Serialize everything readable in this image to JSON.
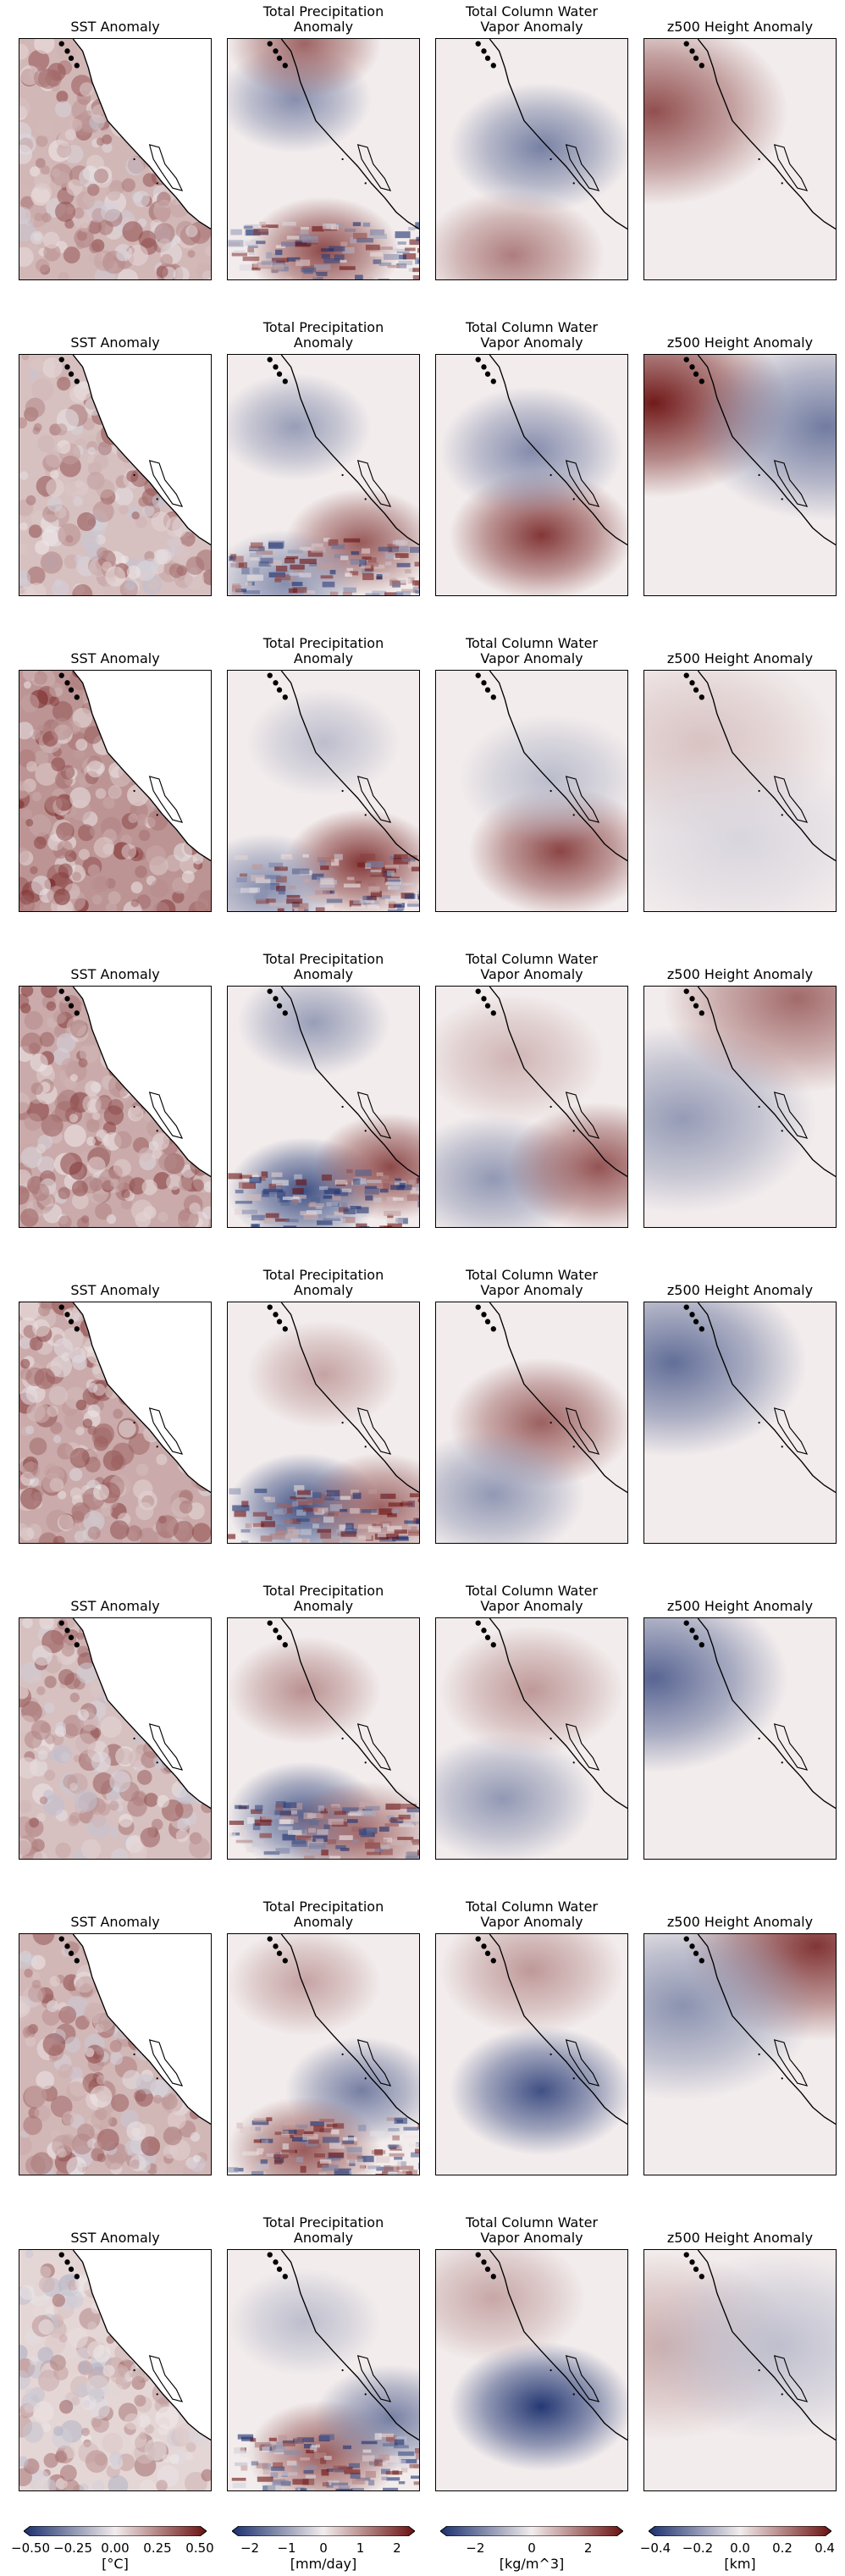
{
  "chart_data": {
    "type": "heatmap",
    "layout": {
      "rows": 8,
      "columns": 4
    },
    "panel_titles": [
      "SST Anomaly",
      "Total Precipitation\nAnomaly",
      "Total Column Water\nVapor Anomaly",
      "z500 Height Anomaly"
    ],
    "colormap": {
      "low": "#1a2f6e",
      "mid": "#f2ecec",
      "high": "#6b1010"
    },
    "colorbars": [
      {
        "ticks": [
          "−0.50",
          "−0.25",
          "0.00",
          "0.25",
          "0.50"
        ],
        "range": [
          -0.5,
          0.5
        ],
        "unit": "[°C]"
      },
      {
        "ticks": [
          "−2",
          "−1",
          "0",
          "1",
          "2"
        ],
        "range": [
          -2.3,
          2.3
        ],
        "unit": "[mm/day]"
      },
      {
        "ticks": [
          "−2",
          "0",
          "2"
        ],
        "range": [
          -3,
          3
        ],
        "unit": "[kg/m^3]"
      },
      {
        "ticks": [
          "−0.4",
          "−0.2",
          "0.0",
          "0.2",
          "0.4"
        ],
        "range": [
          -0.4,
          0.4
        ],
        "unit": "[km]"
      }
    ],
    "rows": [
      {
        "sst": 0.12,
        "precip": [
          {
            "x": 0.5,
            "y": 0.88,
            "v": 1.8
          },
          {
            "x": 0.35,
            "y": 0.25,
            "v": -1.2
          },
          {
            "x": 0.4,
            "y": 0.02,
            "v": 1.5
          }
        ],
        "tcwv": [
          {
            "x": 0.55,
            "y": 0.45,
            "v": -1.8
          },
          {
            "x": 0.4,
            "y": 0.9,
            "v": 1.6
          }
        ],
        "z500": [
          {
            "x": 0.05,
            "y": 0.3,
            "v": 0.3
          }
        ]
      },
      {
        "sst": 0.1,
        "precip": [
          {
            "x": 0.7,
            "y": 0.78,
            "v": 1.6
          },
          {
            "x": 0.35,
            "y": 0.3,
            "v": -1.0
          },
          {
            "x": 0.3,
            "y": 0.95,
            "v": -1.2
          }
        ],
        "tcwv": [
          {
            "x": 0.55,
            "y": 0.75,
            "v": 2.6
          },
          {
            "x": 0.5,
            "y": 0.4,
            "v": -1.6
          }
        ],
        "z500": [
          {
            "x": 0.05,
            "y": 0.2,
            "v": 0.4
          },
          {
            "x": 0.95,
            "y": 0.3,
            "v": -0.25
          }
        ]
      },
      {
        "sst": 0.2,
        "precip": [
          {
            "x": 0.7,
            "y": 0.8,
            "v": 2.0
          },
          {
            "x": 0.2,
            "y": 0.9,
            "v": -1.2
          },
          {
            "x": 0.5,
            "y": 0.3,
            "v": -0.6
          }
        ],
        "tcwv": [
          {
            "x": 0.65,
            "y": 0.75,
            "v": 2.4
          },
          {
            "x": 0.6,
            "y": 0.45,
            "v": -0.8
          }
        ],
        "z500": [
          {
            "x": 0.3,
            "y": 0.3,
            "v": 0.08
          },
          {
            "x": 0.5,
            "y": 0.7,
            "v": -0.05
          }
        ]
      },
      {
        "sst": 0.15,
        "precip": [
          {
            "x": 0.4,
            "y": 0.85,
            "v": -2.0
          },
          {
            "x": 0.85,
            "y": 0.75,
            "v": 1.8
          },
          {
            "x": 0.45,
            "y": 0.15,
            "v": -1.0
          }
        ],
        "tcwv": [
          {
            "x": 0.3,
            "y": 0.8,
            "v": -1.4
          },
          {
            "x": 0.85,
            "y": 0.75,
            "v": 2.2
          },
          {
            "x": 0.4,
            "y": 0.3,
            "v": 0.8
          }
        ],
        "z500": [
          {
            "x": 0.2,
            "y": 0.55,
            "v": -0.18
          },
          {
            "x": 0.8,
            "y": 0.05,
            "v": 0.25
          }
        ]
      },
      {
        "sst": 0.15,
        "precip": [
          {
            "x": 0.4,
            "y": 0.85,
            "v": -2.0
          },
          {
            "x": 0.8,
            "y": 0.85,
            "v": 1.5
          },
          {
            "x": 0.5,
            "y": 0.3,
            "v": 0.8
          }
        ],
        "tcwv": [
          {
            "x": 0.55,
            "y": 0.5,
            "v": 2.0
          },
          {
            "x": 0.3,
            "y": 0.8,
            "v": -1.4
          }
        ],
        "z500": [
          {
            "x": 0.15,
            "y": 0.25,
            "v": -0.28
          }
        ]
      },
      {
        "sst": 0.1,
        "precip": [
          {
            "x": 0.4,
            "y": 0.82,
            "v": -1.8
          },
          {
            "x": 0.7,
            "y": 0.9,
            "v": 1.4
          },
          {
            "x": 0.4,
            "y": 0.3,
            "v": 1.0
          }
        ],
        "tcwv": [
          {
            "x": 0.35,
            "y": 0.75,
            "v": -1.4
          },
          {
            "x": 0.5,
            "y": 0.3,
            "v": 1.2
          }
        ],
        "z500": [
          {
            "x": 0.05,
            "y": 0.25,
            "v": -0.3
          }
        ]
      },
      {
        "sst": 0.12,
        "precip": [
          {
            "x": 0.7,
            "y": 0.65,
            "v": -1.4
          },
          {
            "x": 0.4,
            "y": 0.9,
            "v": 1.6
          },
          {
            "x": 0.4,
            "y": 0.2,
            "v": 0.8
          }
        ],
        "tcwv": [
          {
            "x": 0.55,
            "y": 0.65,
            "v": -2.6
          },
          {
            "x": 0.5,
            "y": 0.15,
            "v": 1.2
          }
        ],
        "z500": [
          {
            "x": 0.9,
            "y": 0.05,
            "v": 0.35
          },
          {
            "x": 0.2,
            "y": 0.3,
            "v": -0.2
          }
        ]
      },
      {
        "sst": 0.05,
        "precip": [
          {
            "x": 0.5,
            "y": 0.85,
            "v": 1.6
          },
          {
            "x": 0.85,
            "y": 0.7,
            "v": -1.4
          },
          {
            "x": 0.4,
            "y": 0.3,
            "v": -0.6
          }
        ],
        "tcwv": [
          {
            "x": 0.55,
            "y": 0.65,
            "v": -3.0
          },
          {
            "x": 0.3,
            "y": 0.2,
            "v": 1.0
          }
        ],
        "z500": [
          {
            "x": 0.1,
            "y": 0.4,
            "v": 0.12
          },
          {
            "x": 0.7,
            "y": 0.4,
            "v": -0.1
          }
        ]
      }
    ]
  }
}
